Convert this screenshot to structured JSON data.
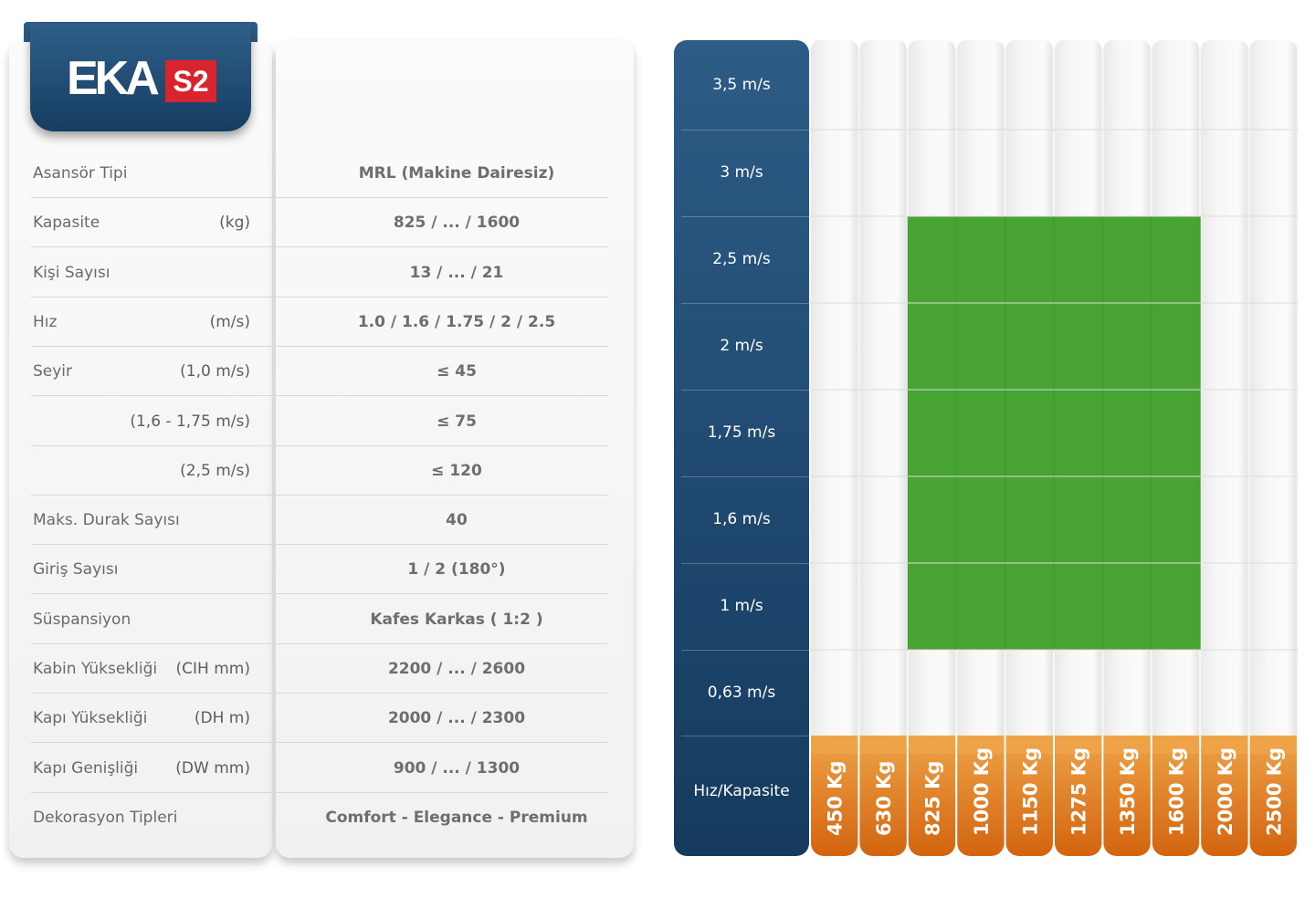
{
  "brand": {
    "logo_text": "EKA",
    "logo_badge": "S2",
    "accent_blue": "#1f4a72",
    "badge_red": "#d9232d"
  },
  "specs": [
    {
      "label": "Asansör Tipi",
      "unit": "",
      "value": "MRL (Makine Dairesiz)"
    },
    {
      "label": "Kapasite",
      "unit": "(kg)",
      "value": "825 / ... / 1600"
    },
    {
      "label": "Kişi Sayısı",
      "unit": "",
      "value": "13  / ... / 21"
    },
    {
      "label": "Hız",
      "unit": "(m/s)",
      "value": "1.0 / 1.6 / 1.75 / 2 / 2.5"
    },
    {
      "label": "Seyir",
      "unit": "(1,0 m/s)",
      "value": "≤ 45"
    },
    {
      "label": "",
      "unit": "(1,6 - 1,75 m/s)",
      "value": "≤ 75"
    },
    {
      "label": "",
      "unit": "(2,5 m/s)",
      "value": "≤ 120"
    },
    {
      "label": "Maks. Durak Sayısı",
      "unit": "",
      "value": "40"
    },
    {
      "label": "Giriş Sayısı",
      "unit": "",
      "value": "1 / 2 (180°)"
    },
    {
      "label": "Süspansiyon",
      "unit": "",
      "value": "Kafes Karkas ( 1:2 )"
    },
    {
      "label": "Kabin Yüksekliği",
      "unit": "(CIH mm)",
      "value": "2200 / ... / 2600"
    },
    {
      "label": "Kapı Yüksekliği",
      "unit": "(DH m)",
      "value": "2000 / ... / 2300"
    },
    {
      "label": "Kapı Genişliği",
      "unit": "(DW mm)",
      "value": "900 / ... / 1300"
    },
    {
      "label": "Dekorasyon Tipleri",
      "unit": "",
      "value": "Comfort - Elegance - Premium"
    }
  ],
  "chart_data": {
    "type": "heatmap",
    "corner_label": "Hız/Kapasite",
    "speeds": [
      "3,5 m/s",
      "3 m/s",
      "2,5 m/s",
      "2  m/s",
      "1,75 m/s",
      "1,6  m/s",
      "1 m/s",
      "0,63 m/s"
    ],
    "capacities": [
      "450 Kg",
      "630 Kg",
      "825 Kg",
      "1000 Kg",
      "1150 Kg",
      "1275 Kg",
      "1350 Kg",
      "1600 Kg",
      "2000 Kg",
      "2500 Kg"
    ],
    "available": [
      [
        0,
        0,
        0,
        0,
        0,
        0,
        0,
        0,
        0,
        0
      ],
      [
        0,
        0,
        0,
        0,
        0,
        0,
        0,
        0,
        0,
        0
      ],
      [
        0,
        0,
        1,
        1,
        1,
        1,
        1,
        1,
        0,
        0
      ],
      [
        0,
        0,
        1,
        1,
        1,
        1,
        1,
        1,
        0,
        0
      ],
      [
        0,
        0,
        1,
        1,
        1,
        1,
        1,
        1,
        0,
        0
      ],
      [
        0,
        0,
        1,
        1,
        1,
        1,
        1,
        1,
        0,
        0
      ],
      [
        0,
        0,
        1,
        1,
        1,
        1,
        1,
        1,
        0,
        0
      ],
      [
        0,
        0,
        0,
        0,
        0,
        0,
        0,
        0,
        0,
        0
      ]
    ],
    "colors": {
      "available": "#47a332",
      "header": "#e07a1c",
      "speed_column": "#1f4a72"
    }
  }
}
